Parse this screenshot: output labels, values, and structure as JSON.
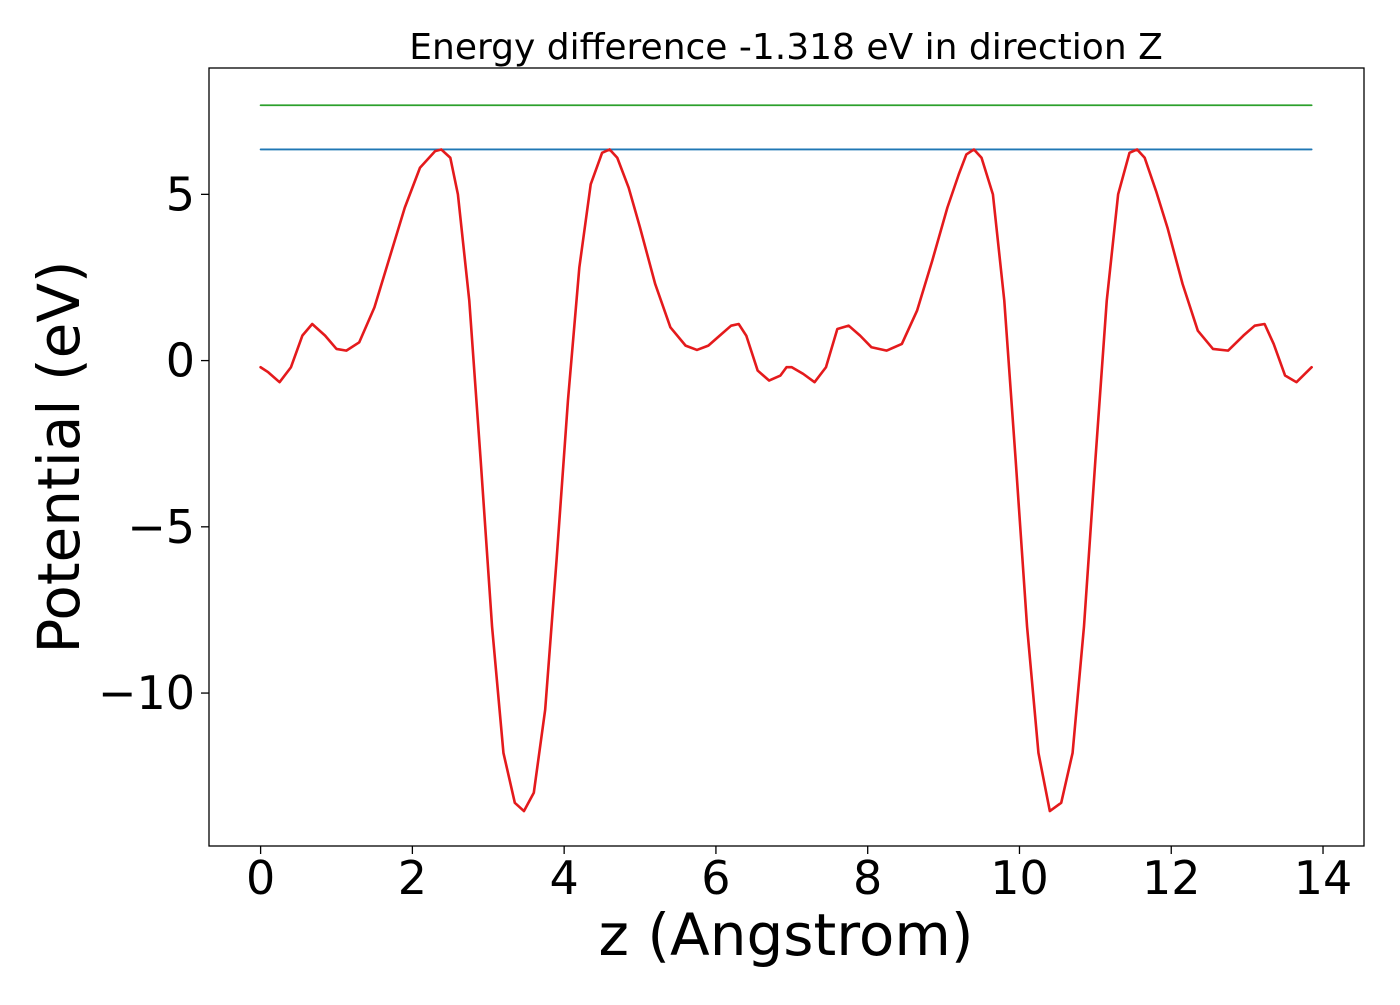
{
  "chart_data": {
    "type": "line",
    "title": "Energy difference -1.318 eV in direction Z",
    "xlabel": "z (Angstrom)",
    "ylabel": "Potential (eV)",
    "xlim": [
      -0.68,
      14.54
    ],
    "ylim": [
      -14.6,
      8.8
    ],
    "x_ticks": [
      0,
      2,
      4,
      6,
      8,
      10,
      12,
      14
    ],
    "x_tick_labels": [
      "0",
      "2",
      "4",
      "6",
      "8",
      "10",
      "12",
      "14"
    ],
    "y_ticks": [
      5,
      0,
      -5,
      -10
    ],
    "y_tick_labels": [
      "5",
      "0",
      "−5",
      "−10"
    ],
    "grid": false,
    "legend": "none",
    "series": [
      {
        "color": "#2ca02c",
        "style": "horizontal",
        "x": [
          0,
          13.85
        ],
        "y": [
          7.68,
          7.68
        ]
      },
      {
        "color": "#1f77b4",
        "style": "horizontal",
        "x": [
          0,
          13.85
        ],
        "y": [
          6.35,
          6.35
        ]
      },
      {
        "color": "#e41a1c",
        "style": "curve",
        "x": [
          0.0,
          0.1,
          0.25,
          0.4,
          0.55,
          0.68,
          0.85,
          1.0,
          1.13,
          1.3,
          1.5,
          1.7,
          1.9,
          2.1,
          2.3,
          2.38,
          2.5,
          2.6,
          2.75,
          2.9,
          3.05,
          3.2,
          3.35,
          3.47,
          3.6,
          3.75,
          3.9,
          4.05,
          4.2,
          4.35,
          4.5,
          4.6,
          4.7,
          4.85,
          5.0,
          5.2,
          5.4,
          5.6,
          5.75,
          5.9,
          6.05,
          6.2,
          6.3,
          6.4,
          6.55,
          6.7,
          6.85,
          6.93,
          7.0,
          7.15,
          7.3,
          7.45,
          7.6,
          7.75,
          7.9,
          8.05,
          8.25,
          8.45,
          8.65,
          8.85,
          9.05,
          9.2,
          9.3,
          9.4,
          9.5,
          9.65,
          9.8,
          9.95,
          10.1,
          10.25,
          10.4,
          10.55,
          10.7,
          10.85,
          11.0,
          11.15,
          11.3,
          11.45,
          11.55,
          11.65,
          11.8,
          11.95,
          12.15,
          12.35,
          12.55,
          12.75,
          12.95,
          13.1,
          13.23,
          13.35,
          13.5,
          13.65,
          13.85
        ],
        "y": [
          -0.2,
          -0.35,
          -0.65,
          -0.2,
          0.75,
          1.1,
          0.75,
          0.35,
          0.3,
          0.55,
          1.6,
          3.1,
          4.6,
          5.8,
          6.3,
          6.35,
          6.1,
          5.0,
          1.8,
          -3.0,
          -8.0,
          -11.8,
          -13.3,
          -13.55,
          -13.0,
          -10.5,
          -6.0,
          -1.2,
          2.8,
          5.3,
          6.25,
          6.35,
          6.1,
          5.2,
          4.0,
          2.3,
          1.0,
          0.45,
          0.32,
          0.45,
          0.75,
          1.05,
          1.1,
          0.75,
          -0.3,
          -0.6,
          -0.45,
          -0.2,
          -0.2,
          -0.4,
          -0.65,
          -0.2,
          0.95,
          1.05,
          0.75,
          0.4,
          0.3,
          0.5,
          1.5,
          3.0,
          4.6,
          5.6,
          6.2,
          6.35,
          6.1,
          5.0,
          1.8,
          -3.0,
          -8.0,
          -11.8,
          -13.55,
          -13.3,
          -11.8,
          -8.0,
          -3.0,
          1.8,
          5.0,
          6.25,
          6.35,
          6.1,
          5.1,
          4.0,
          2.3,
          0.9,
          0.35,
          0.3,
          0.75,
          1.05,
          1.1,
          0.5,
          -0.45,
          -0.65,
          -0.2
        ]
      }
    ]
  }
}
